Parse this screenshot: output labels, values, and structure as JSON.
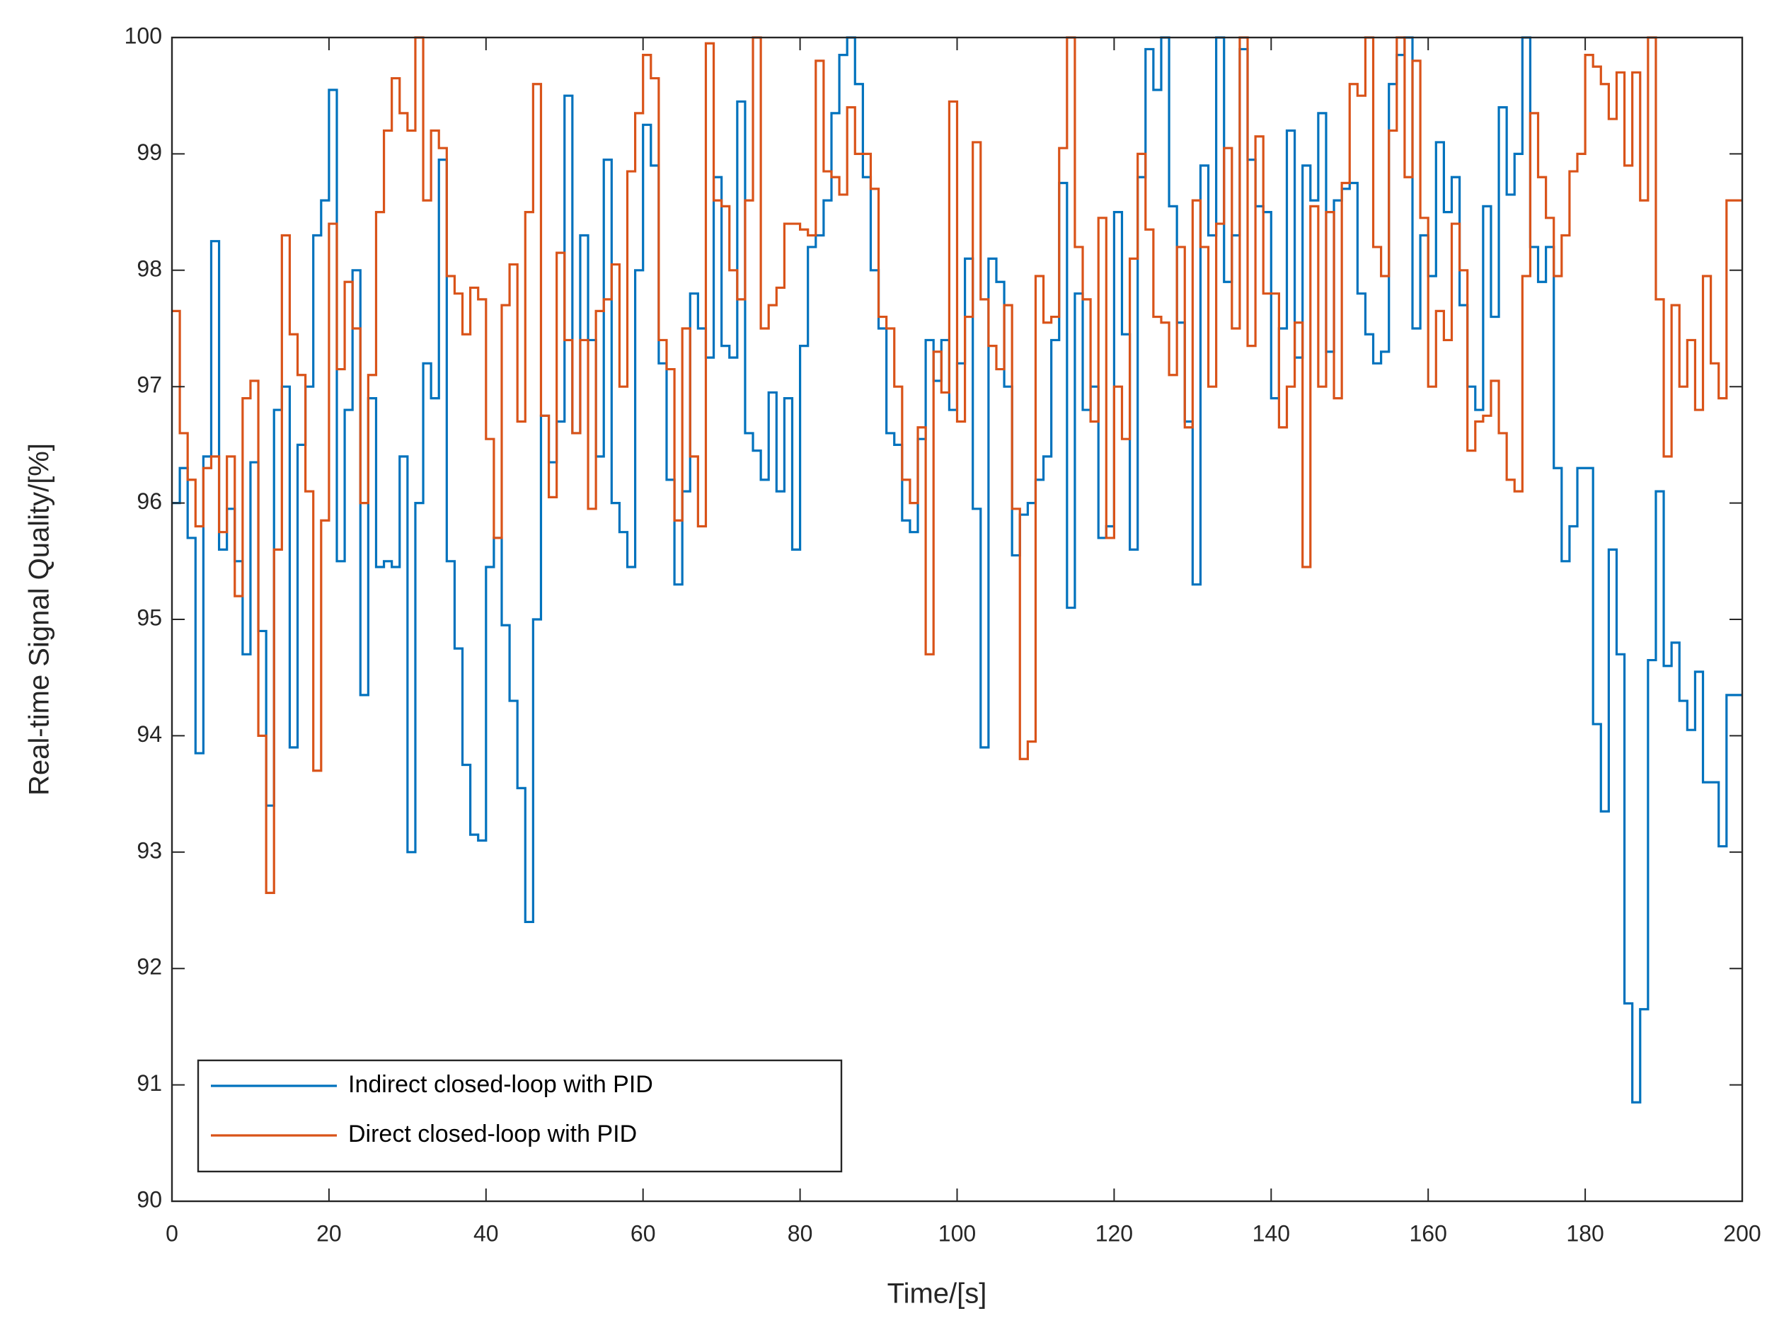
{
  "chart_data": {
    "type": "line",
    "step": true,
    "xlabel": "Time/[s]",
    "ylabel": "Real-time Signal Quality/[%]",
    "xlim": [
      0,
      200
    ],
    "ylim": [
      90,
      100
    ],
    "xticks": [
      0,
      20,
      40,
      60,
      80,
      100,
      120,
      140,
      160,
      180,
      200
    ],
    "yticks": [
      90,
      91,
      92,
      93,
      94,
      95,
      96,
      97,
      98,
      99,
      100
    ],
    "legend": "lower left",
    "grid": false,
    "x": [
      0,
      1,
      2,
      3,
      4,
      5,
      6,
      7,
      8,
      9,
      10,
      11,
      12,
      13,
      14,
      15,
      16,
      17,
      18,
      19,
      20,
      21,
      22,
      23,
      24,
      25,
      26,
      27,
      28,
      29,
      30,
      31,
      32,
      33,
      34,
      35,
      36,
      37,
      38,
      39,
      40,
      41,
      42,
      43,
      44,
      45,
      46,
      47,
      48,
      49,
      50,
      51,
      52,
      53,
      54,
      55,
      56,
      57,
      58,
      59,
      60,
      61,
      62,
      63,
      64,
      65,
      66,
      67,
      68,
      69,
      70,
      71,
      72,
      73,
      74,
      75,
      76,
      77,
      78,
      79,
      80,
      81,
      82,
      83,
      84,
      85,
      86,
      87,
      88,
      89,
      90,
      91,
      92,
      93,
      94,
      95,
      96,
      97,
      98,
      99,
      100,
      101,
      102,
      103,
      104,
      105,
      106,
      107,
      108,
      109,
      110,
      111,
      112,
      113,
      114,
      115,
      116,
      117,
      118,
      119,
      120,
      121,
      122,
      123,
      124,
      125,
      126,
      127,
      128,
      129,
      130,
      131,
      132,
      133,
      134,
      135,
      136,
      137,
      138,
      139,
      140,
      141,
      142,
      143,
      144,
      145,
      146,
      147,
      148,
      149,
      150,
      151,
      152,
      153,
      154,
      155,
      156,
      157,
      158,
      159,
      160,
      161,
      162,
      163,
      164,
      165,
      166,
      167,
      168,
      169,
      170,
      171,
      172,
      173,
      174,
      175,
      176,
      177,
      178,
      179,
      180,
      181,
      182,
      183,
      184,
      185,
      186,
      187,
      188,
      189,
      190,
      191,
      192,
      193,
      194,
      195,
      196,
      197,
      198
    ],
    "series": [
      {
        "name": "Indirect closed-loop with PID",
        "color": "#0072bd",
        "values": [
          96.0,
          96.3,
          95.7,
          93.85,
          96.4,
          98.25,
          95.6,
          95.95,
          95.5,
          94.7,
          96.35,
          94.9,
          93.4,
          96.8,
          97.0,
          93.9,
          96.5,
          97.0,
          98.3,
          98.6,
          99.55,
          95.5,
          96.8,
          98.0,
          94.35,
          96.9,
          95.45,
          95.5,
          95.45,
          96.4,
          93.0,
          96.0,
          97.2,
          96.9,
          98.95,
          95.5,
          94.75,
          93.75,
          93.15,
          93.1,
          95.45,
          95.7,
          94.95,
          94.3,
          93.55,
          92.4,
          95.0,
          96.75,
          96.35,
          96.7,
          99.5,
          96.6,
          98.3,
          97.4,
          96.4,
          98.95,
          96.0,
          95.75,
          95.45,
          98.0,
          99.25,
          98.9,
          97.2,
          96.2,
          95.3,
          96.1,
          97.8,
          97.5,
          97.25,
          98.8,
          97.35,
          97.25,
          99.45,
          96.6,
          96.45,
          96.2,
          96.95,
          96.1,
          96.9,
          95.6,
          97.35,
          98.2,
          98.3,
          98.6,
          99.35,
          99.85,
          100.0,
          99.6,
          98.8,
          98.0,
          97.5,
          96.6,
          96.5,
          95.85,
          95.75,
          96.55,
          97.4,
          97.05,
          97.4,
          96.8,
          97.2,
          98.1,
          95.95,
          93.9,
          98.1,
          97.9,
          97.0,
          95.55,
          95.9,
          96.0,
          96.2,
          96.4,
          97.4,
          98.75,
          95.1,
          97.8,
          96.8,
          97.0,
          95.7,
          95.8,
          98.5,
          97.45,
          95.6,
          98.8,
          99.9,
          99.55,
          100.0,
          98.55,
          97.55,
          96.7,
          95.3,
          98.9,
          98.3,
          100.0,
          97.9,
          98.3,
          99.9,
          98.95,
          98.55,
          98.5,
          96.9,
          97.5,
          99.2,
          97.25,
          98.9,
          98.6,
          99.35,
          97.3,
          98.6,
          98.7,
          98.75,
          97.8,
          97.45,
          97.2,
          97.3,
          99.6,
          99.85,
          100.0,
          97.5,
          98.3,
          97.95,
          99.1,
          98.5,
          98.8,
          97.7,
          97.0,
          96.8,
          98.55,
          97.6,
          99.4,
          98.65,
          99.0,
          100.0,
          98.2,
          97.9,
          98.2,
          96.3,
          95.5,
          95.8,
          96.3,
          96.3,
          94.1,
          93.35,
          95.6,
          94.7,
          91.7,
          90.85,
          91.65,
          94.65,
          96.1,
          94.6,
          94.8,
          94.3,
          94.05,
          94.55,
          93.6,
          93.6,
          93.05,
          94.35
        ]
      },
      {
        "name": "Direct closed-loop with PID",
        "color": "#d95319",
        "values": [
          97.65,
          96.6,
          96.2,
          95.8,
          96.3,
          96.4,
          95.75,
          96.4,
          95.2,
          96.9,
          97.05,
          94.0,
          92.65,
          95.6,
          98.3,
          97.45,
          97.1,
          96.1,
          93.7,
          95.85,
          98.4,
          97.15,
          97.9,
          97.5,
          96.0,
          97.1,
          98.5,
          99.2,
          99.65,
          99.35,
          99.2,
          100.0,
          98.6,
          99.2,
          99.05,
          97.95,
          97.8,
          97.45,
          97.85,
          97.75,
          96.55,
          95.7,
          97.7,
          98.05,
          96.7,
          98.5,
          99.6,
          96.75,
          96.05,
          98.15,
          97.4,
          96.6,
          97.4,
          95.95,
          97.65,
          97.75,
          98.05,
          97.0,
          98.85,
          99.35,
          99.85,
          99.65,
          97.4,
          97.15,
          95.85,
          97.5,
          96.4,
          95.8,
          99.95,
          98.6,
          98.55,
          98.0,
          97.75,
          98.6,
          100.0,
          97.5,
          97.7,
          97.85,
          98.4,
          98.4,
          98.35,
          98.3,
          99.8,
          98.85,
          98.8,
          98.65,
          99.4,
          99.0,
          99.0,
          98.7,
          97.6,
          97.5,
          97.0,
          96.2,
          96.0,
          96.65,
          94.7,
          97.3,
          96.95,
          99.45,
          96.7,
          97.6,
          99.1,
          97.75,
          97.35,
          97.15,
          97.7,
          95.95,
          93.8,
          93.95,
          97.95,
          97.55,
          97.6,
          99.05,
          100.0,
          98.2,
          97.75,
          96.7,
          98.45,
          95.7,
          97.0,
          96.55,
          98.1,
          99.0,
          98.35,
          97.6,
          97.55,
          97.1,
          98.2,
          96.65,
          98.6,
          98.2,
          97.0,
          98.4,
          99.05,
          97.5,
          100.0,
          97.35,
          99.15,
          97.8,
          97.8,
          96.65,
          97.0,
          97.55,
          95.45,
          98.55,
          97.0,
          98.5,
          96.9,
          98.75,
          99.6,
          99.5,
          100.0,
          98.2,
          97.95,
          99.2,
          100.0,
          98.8,
          99.8,
          98.45,
          97.0,
          97.65,
          97.4,
          98.4,
          98.0,
          96.45,
          96.7,
          96.75,
          97.05,
          96.6,
          96.2,
          96.1,
          97.95,
          99.35,
          98.8,
          98.45,
          97.95,
          98.3,
          98.85,
          99.0,
          99.85,
          99.75,
          99.6,
          99.3,
          99.7,
          98.9,
          99.7,
          98.6,
          100.0,
          97.75,
          96.4,
          97.7,
          97.0,
          97.4,
          96.8,
          97.95,
          97.2,
          96.9,
          98.6
        ]
      }
    ]
  }
}
